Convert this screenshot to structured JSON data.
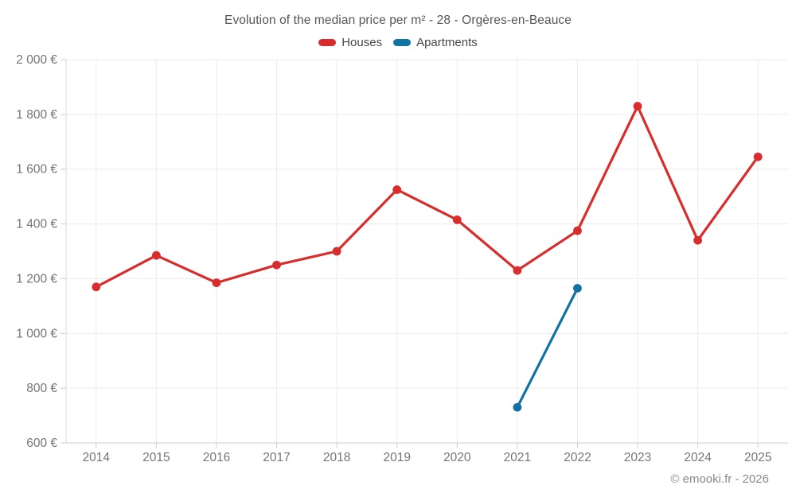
{
  "footer": {
    "text": "© emooki.fr - 2026"
  },
  "chart_data": {
    "type": "line",
    "title": "Evolution of the median price per m² - 28 - Orgères-en-Beauce",
    "xlabel": "",
    "ylabel": "",
    "categories": [
      "2014",
      "2015",
      "2016",
      "2017",
      "2018",
      "2019",
      "2020",
      "2021",
      "2022",
      "2023",
      "2024",
      "2025"
    ],
    "series": [
      {
        "name": "Houses",
        "color": "#d92c2c",
        "values": [
          1170,
          1285,
          1185,
          1250,
          1300,
          1525,
          1415,
          1230,
          1375,
          1830,
          1340,
          1645
        ]
      },
      {
        "name": "Apartments",
        "color": "#1272a3",
        "values": [
          null,
          null,
          null,
          null,
          null,
          null,
          null,
          730,
          1165,
          null,
          null,
          null
        ]
      }
    ],
    "ylim": [
      600,
      2000
    ],
    "y_tick_step": 200,
    "y_tick_labels": [
      "600 €",
      "800 €",
      "1 000 €",
      "1 200 €",
      "1 400 €",
      "1 600 €",
      "1 800 €",
      "2 000 €"
    ],
    "currency_suffix": "€",
    "grid": true,
    "legend_position": "top",
    "colors": {
      "grid": "#ececec",
      "axis": "#cccccc",
      "tick": "#cccccc",
      "tick_label": "#757575",
      "title": "#555555"
    }
  }
}
